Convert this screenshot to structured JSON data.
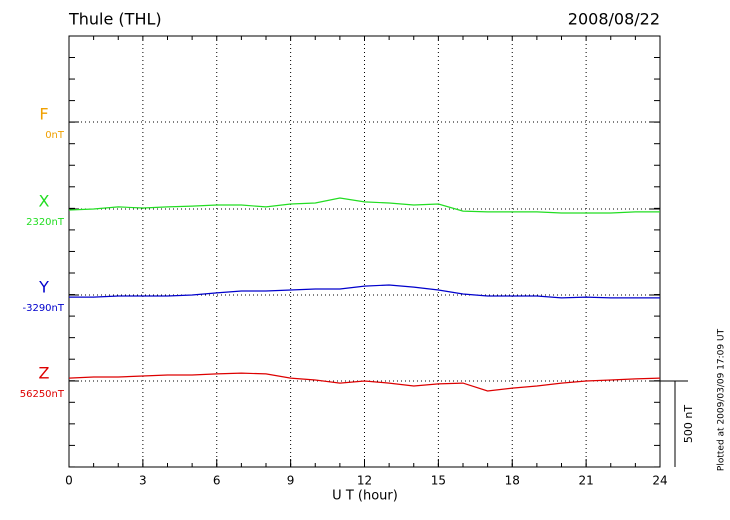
{
  "chart_data": {
    "type": "line",
    "title": "Thule (THL)",
    "date": "2008/08/22",
    "x_label": "U T (hour)",
    "footnote": "Plotted at 2009/03/09 17:09 UT",
    "xlim": [
      0,
      24
    ],
    "xticks": [
      0,
      3,
      6,
      9,
      12,
      15,
      18,
      21,
      24
    ],
    "scale_bar": {
      "value": 500,
      "label": "500 nT"
    },
    "x": [
      0,
      1,
      2,
      3,
      4,
      5,
      6,
      7,
      8,
      9,
      10,
      11,
      12,
      13,
      14,
      15,
      16,
      17,
      18,
      19,
      20,
      21,
      22,
      23,
      24
    ],
    "series": [
      {
        "name": "F",
        "color": "#f0a000",
        "baseline": {
          "value": 0,
          "label": "0nT"
        }
      },
      {
        "name": "X",
        "color": "#22dd22",
        "baseline": {
          "value": 2320,
          "label": "2320nT"
        },
        "values": [
          2314,
          2320,
          2332,
          2326,
          2332,
          2337,
          2343,
          2343,
          2332,
          2349,
          2355,
          2384,
          2361,
          2355,
          2343,
          2349,
          2308,
          2303,
          2303,
          2303,
          2297,
          2297,
          2297,
          2303,
          2303
        ]
      },
      {
        "name": "Y",
        "color": "#0000cc",
        "baseline": {
          "value": -3290,
          "label": "-3290nT"
        },
        "values": [
          -3302,
          -3302,
          -3296,
          -3296,
          -3296,
          -3290,
          -3278,
          -3267,
          -3267,
          -3261,
          -3255,
          -3255,
          -3238,
          -3232,
          -3244,
          -3261,
          -3284,
          -3296,
          -3296,
          -3296,
          -3307,
          -3302,
          -3307,
          -3307,
          -3307
        ]
      },
      {
        "name": "Z",
        "color": "#dd0000",
        "baseline": {
          "value": 56250,
          "label": "56250nT"
        },
        "values": [
          56267,
          56273,
          56273,
          56279,
          56285,
          56285,
          56291,
          56296,
          56291,
          56267,
          56256,
          56238,
          56250,
          56238,
          56221,
          56233,
          56238,
          56192,
          56209,
          56221,
          56238,
          56250,
          56256,
          56262,
          56267
        ]
      }
    ]
  }
}
